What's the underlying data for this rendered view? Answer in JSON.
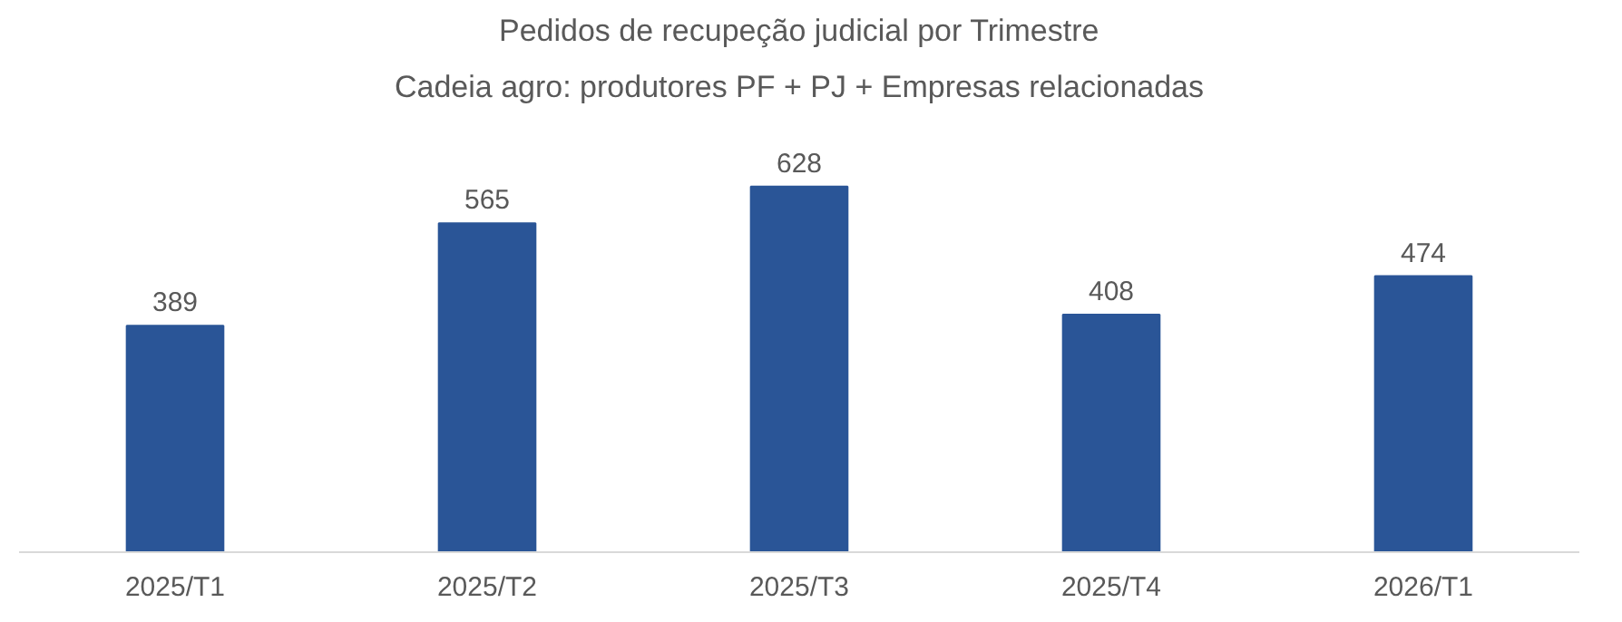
{
  "chart_data": {
    "type": "bar",
    "title": "Pedidos de recupeção judicial por Trimestre",
    "subtitle": "Cadeia agro: produtores PF + PJ + Empresas relacionadas",
    "categories": [
      "2025/T1",
      "2025/T2",
      "2025/T3",
      "2025/T4",
      "2026/T1"
    ],
    "values": [
      389,
      565,
      628,
      408,
      474
    ],
    "color": "#2a5597",
    "data_labels": true,
    "grid": false
  }
}
